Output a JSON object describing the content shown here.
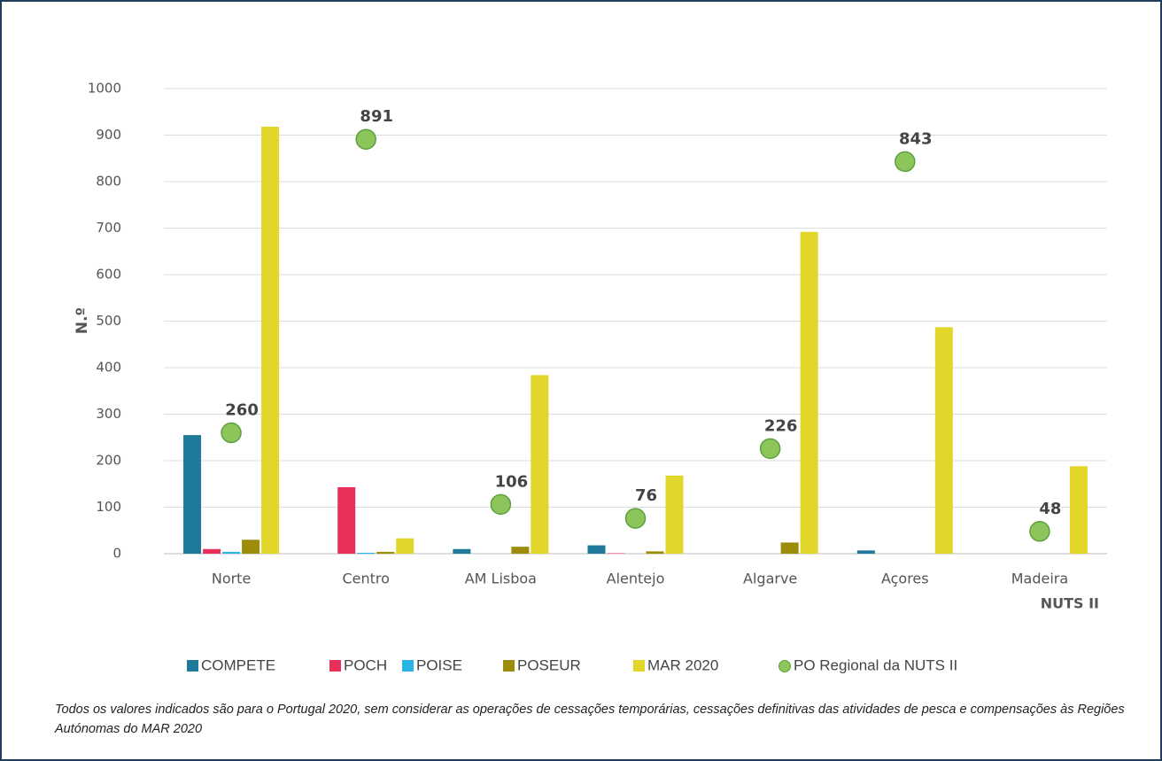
{
  "chart_data": {
    "type": "bar",
    "y_label": "N.º",
    "x_label": "NUTS II",
    "categories": [
      "Norte",
      "Centro",
      "AM Lisboa",
      "Alentejo",
      "Algarve",
      "Açores",
      "Madeira"
    ],
    "series": [
      {
        "name": "COMPETE",
        "color": "#1f7a99",
        "values": [
          255,
          0,
          10,
          18,
          0,
          7,
          0
        ]
      },
      {
        "name": "POCH",
        "color": "#e8305a",
        "values": [
          10,
          143,
          0,
          1,
          0,
          0,
          0
        ]
      },
      {
        "name": "POISE",
        "color": "#29b6e6",
        "values": [
          4,
          2,
          0,
          0,
          0,
          0,
          0
        ]
      },
      {
        "name": "POSEUR",
        "color": "#9c8c0a",
        "values": [
          30,
          4,
          15,
          5,
          24,
          0,
          0
        ]
      },
      {
        "name": "MAR 2020",
        "color": "#e3d62b",
        "values": [
          918,
          33,
          384,
          168,
          692,
          487,
          188
        ]
      },
      {
        "name": "PO Regional da NUTS II",
        "color": "#8cc65a",
        "type": "scatter",
        "values": [
          260,
          891,
          106,
          76,
          226,
          843,
          48
        ]
      }
    ],
    "ylim": [
      0,
      1000
    ],
    "yticks": [
      0,
      100,
      200,
      300,
      400,
      500,
      600,
      700,
      800,
      900,
      1000
    ],
    "grid": true,
    "note": "Todos os valores indicados são para o Portugal 2020, sem considerar as operações de cessações temporárias, cessações definitivas das atividades de pesca e compensações às Regiões Autónomas do MAR 2020"
  }
}
